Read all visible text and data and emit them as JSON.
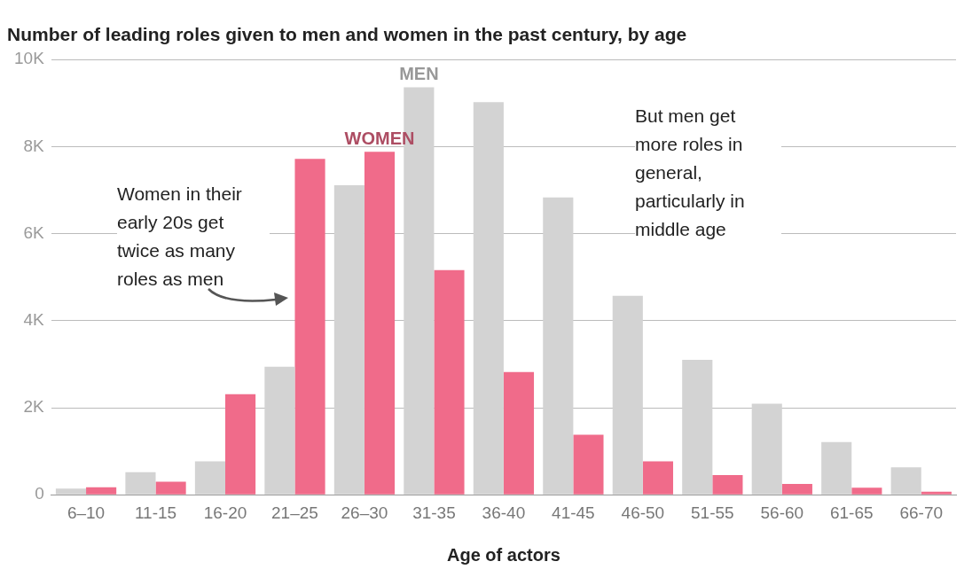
{
  "chart_data": {
    "type": "bar",
    "title": "Number of leading roles given to men and women in the past century, by age",
    "xlabel": "Age of actors",
    "categories": [
      "6–10",
      "11-15",
      "16-20",
      "21–25",
      "26–30",
      "31-35",
      "36-40",
      "41-45",
      "46-50",
      "51-55",
      "56-60",
      "61-65",
      "66-70"
    ],
    "series": [
      {
        "name": "MEN",
        "color": "#d3d3d3",
        "values": [
          140,
          520,
          770,
          2940,
          7110,
          9360,
          9020,
          6830,
          4570,
          3100,
          2090,
          1210,
          630
        ]
      },
      {
        "name": "WOMEN",
        "color": "#f06b8a",
        "values": [
          170,
          300,
          2310,
          7720,
          7880,
          5160,
          2820,
          1380,
          770,
          450,
          250,
          160,
          70
        ]
      }
    ],
    "ylim": [
      0,
      10000
    ],
    "yticks": [
      0,
      {
        "value": 2000,
        "label": "2K"
      },
      {
        "value": 4000,
        "label": "4K"
      },
      {
        "value": 6000,
        "label": "6K"
      },
      {
        "value": 8000,
        "label": "8K"
      },
      {
        "value": 10000,
        "label": "10K"
      }
    ],
    "grid": "y",
    "legend": false,
    "annotations": [
      "Women in their early 20s get twice as many roles as men",
      "But men get more roles in general, particularly in middle age"
    ]
  }
}
